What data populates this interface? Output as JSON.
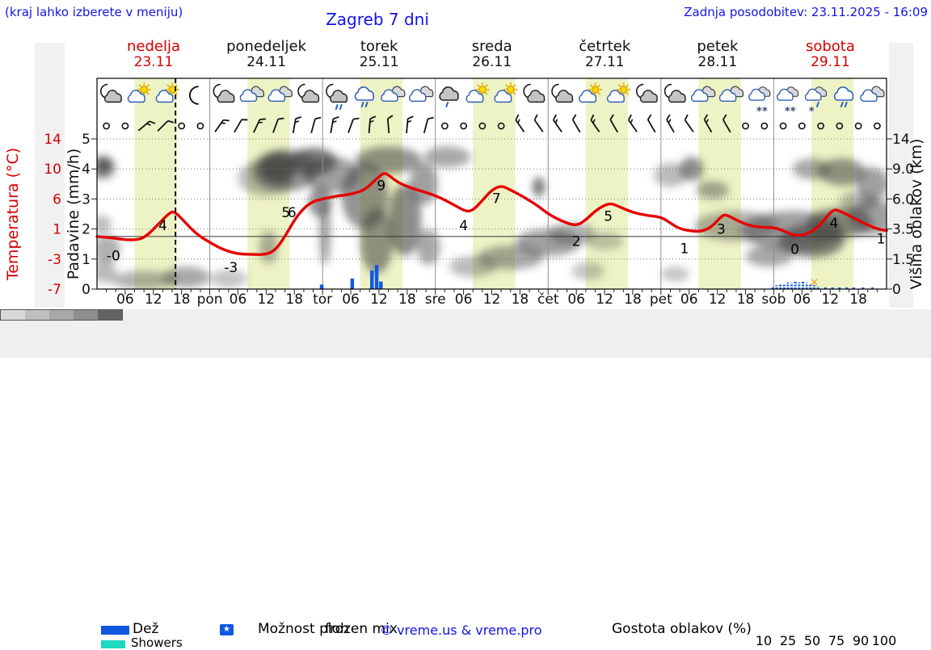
{
  "header": {
    "menu_hint": "(kraj lahko izberete v meniju)",
    "title": "Zagreb 7 dni",
    "last_update": "Zadnja posodobitev: 23.11.2025 - 16:09"
  },
  "days": [
    {
      "name": "nedelja",
      "date": "23.11",
      "highlight": true,
      "axis_short": ""
    },
    {
      "name": "ponedeljek",
      "date": "24.11",
      "highlight": false,
      "axis_short": "pon"
    },
    {
      "name": "torek",
      "date": "25.11",
      "highlight": false,
      "axis_short": "tor"
    },
    {
      "name": "sreda",
      "date": "26.11",
      "highlight": false,
      "axis_short": "sre"
    },
    {
      "name": "četrtek",
      "date": "27.11",
      "highlight": false,
      "axis_short": "čet"
    },
    {
      "name": "petek",
      "date": "28.11",
      "highlight": false,
      "axis_short": "pet"
    },
    {
      "name": "sobota",
      "date": "29.11",
      "highlight": true,
      "axis_short": "sob"
    }
  ],
  "legend": {
    "rain": "Dež",
    "showers": "Showers",
    "chance": "Možnost ploh",
    "frozen_mix": "frozen mix",
    "star": "★",
    "copyright": "© vreme.us & vreme.pro",
    "cloud_density": "Gostota oblakov (%)",
    "density_ticks": [
      "10",
      "25",
      "50",
      "75",
      "90",
      "100"
    ],
    "density_colors": [
      "#d8d8d8",
      "#bfbfbf",
      "#a8a8a8",
      "#8f8f8f",
      "#636363"
    ]
  },
  "colors": {
    "accent_blue": "#1414e6",
    "red": "#d40000",
    "temperature_line": "#e60000",
    "day_band": "#eef3c6",
    "rain": "#1257e0",
    "showers": "#1fd7c2",
    "frozen_x": "#f0a81e",
    "grid": "#777777",
    "cloud_gray": "#404040"
  },
  "chart_data": {
    "type": "line+bar+contour",
    "title": "Zagreb 7 dni",
    "x_axis": {
      "unit": "hours",
      "range": [
        0,
        168
      ],
      "hour_tick_labels": [
        "06",
        "12",
        "18"
      ],
      "now_line_hour": 16.7,
      "day_band_hours": [
        8,
        17
      ]
    },
    "y_axis_temperature": {
      "label": "Temperatura (°C)",
      "ticks": [
        "14",
        "10",
        "6",
        "1",
        "-3",
        "-7"
      ]
    },
    "y_axis_precip": {
      "label": "Padavine (mm/h)",
      "ticks": [
        "5",
        "4",
        "3",
        "2",
        "1",
        "0"
      ],
      "zero_temp_gridline_units": 1.75
    },
    "y_axis_cloud": {
      "label": "Višina oblakov (km)",
      "ticks": [
        "14",
        "9.0",
        "6.0",
        "3.5",
        "1.5",
        "0"
      ]
    },
    "temperature": {
      "points": [
        [
          0,
          1.75
        ],
        [
          3,
          1.71
        ],
        [
          7,
          1.62
        ],
        [
          10,
          1.68
        ],
        [
          13,
          2.15
        ],
        [
          15.5,
          2.55
        ],
        [
          16.5,
          2.58
        ],
        [
          18,
          2.35
        ],
        [
          21,
          1.85
        ],
        [
          24,
          1.55
        ],
        [
          27,
          1.3
        ],
        [
          30,
          1.17
        ],
        [
          33,
          1.15
        ],
        [
          36,
          1.15
        ],
        [
          38,
          1.3
        ],
        [
          40,
          1.75
        ],
        [
          42,
          2.3
        ],
        [
          44,
          2.7
        ],
        [
          46,
          2.92
        ],
        [
          48,
          3.0
        ],
        [
          51,
          3.1
        ],
        [
          54,
          3.15
        ],
        [
          57,
          3.3
        ],
        [
          59,
          3.6
        ],
        [
          61,
          3.88
        ],
        [
          62,
          3.8
        ],
        [
          64,
          3.55
        ],
        [
          67,
          3.35
        ],
        [
          70,
          3.22
        ],
        [
          73,
          3.05
        ],
        [
          76,
          2.8
        ],
        [
          78.5,
          2.58
        ],
        [
          80,
          2.62
        ],
        [
          82,
          2.95
        ],
        [
          84,
          3.3
        ],
        [
          86,
          3.45
        ],
        [
          88,
          3.3
        ],
        [
          91,
          3.05
        ],
        [
          94,
          2.75
        ],
        [
          96,
          2.5
        ],
        [
          99,
          2.25
        ],
        [
          102,
          2.1
        ],
        [
          104,
          2.3
        ],
        [
          106,
          2.6
        ],
        [
          108,
          2.8
        ],
        [
          109.5,
          2.85
        ],
        [
          111,
          2.75
        ],
        [
          114,
          2.55
        ],
        [
          117,
          2.45
        ],
        [
          120,
          2.4
        ],
        [
          122,
          2.2
        ],
        [
          124,
          2.0
        ],
        [
          127,
          1.92
        ],
        [
          129,
          1.93
        ],
        [
          131,
          2.1
        ],
        [
          133,
          2.45
        ],
        [
          134,
          2.47
        ],
        [
          136,
          2.3
        ],
        [
          139,
          2.1
        ],
        [
          142,
          2.05
        ],
        [
          144,
          2.05
        ],
        [
          146,
          1.95
        ],
        [
          148,
          1.8
        ],
        [
          150,
          1.78
        ],
        [
          152,
          1.9
        ],
        [
          154,
          2.15
        ],
        [
          156,
          2.55
        ],
        [
          157,
          2.65
        ],
        [
          158,
          2.6
        ],
        [
          160,
          2.45
        ],
        [
          163,
          2.2
        ],
        [
          166,
          2.0
        ],
        [
          168,
          1.95
        ]
      ],
      "labels": [
        [
          3.5,
          1.12,
          "-0"
        ],
        [
          14,
          2.12,
          "4"
        ],
        [
          28.5,
          0.72,
          "-3"
        ],
        [
          40.2,
          2.56,
          "5"
        ],
        [
          41.5,
          2.56,
          "6"
        ],
        [
          60.5,
          3.45,
          "9"
        ],
        [
          78,
          2.12,
          "4"
        ],
        [
          85,
          3.02,
          "7"
        ],
        [
          102,
          1.6,
          "2"
        ],
        [
          108.8,
          2.43,
          "5"
        ],
        [
          125,
          1.36,
          "1"
        ],
        [
          132.8,
          2.0,
          "3"
        ],
        [
          148.5,
          1.33,
          "0"
        ],
        [
          156.8,
          2.2,
          "4"
        ],
        [
          166.8,
          1.68,
          "1"
        ]
      ]
    },
    "precipitation": {
      "rain_bars": [
        [
          47.8,
          0.15
        ],
        [
          54.3,
          0.35
        ],
        [
          58.5,
          0.62
        ],
        [
          59.5,
          0.8
        ],
        [
          60.4,
          0.25
        ]
      ],
      "mix_bars": [
        [
          143.8,
          0.1
        ],
        [
          144.6,
          0.13
        ],
        [
          145.4,
          0.18
        ],
        [
          146.2,
          0.15
        ],
        [
          147,
          0.22
        ],
        [
          147.8,
          0.2
        ],
        [
          148.6,
          0.26
        ],
        [
          149.4,
          0.22
        ],
        [
          150.2,
          0.28
        ],
        [
          151,
          0.2
        ],
        [
          151.8,
          0.16
        ],
        [
          152.6,
          0.13
        ],
        [
          153.4,
          0.1
        ],
        [
          155,
          0.07
        ],
        [
          156.5,
          0.07
        ],
        [
          158,
          0.07
        ],
        [
          159.5,
          0.09
        ],
        [
          161,
          0.07
        ],
        [
          163,
          0.06
        ],
        [
          165,
          0.06
        ]
      ],
      "frozen_x_marker": {
        "h": 152.6,
        "u": 0.2,
        "glyph": "✕"
      }
    },
    "cloud_blobs": [
      [
        1,
        4.05,
        3,
        0.4,
        0.5
      ],
      [
        1.5,
        4.1,
        1.5,
        0.28,
        0.75
      ],
      [
        1,
        2.15,
        2,
        0.3,
        0.35
      ],
      [
        2,
        1.35,
        3,
        0.45,
        0.4
      ],
      [
        1.5,
        0.6,
        2.5,
        0.4,
        0.35
      ],
      [
        10,
        0.3,
        7,
        0.3,
        0.4
      ],
      [
        19,
        0.4,
        5,
        0.35,
        0.45
      ],
      [
        28,
        0.35,
        4,
        0.3,
        0.3
      ],
      [
        36.5,
        1.4,
        2,
        0.55,
        0.4
      ],
      [
        36,
        3.7,
        6,
        0.6,
        0.35
      ],
      [
        40,
        3.95,
        7,
        0.7,
        0.55
      ],
      [
        38.5,
        4.05,
        4,
        0.5,
        0.75
      ],
      [
        46,
        4.25,
        5,
        0.45,
        0.7
      ],
      [
        50,
        3.8,
        6,
        0.6,
        0.5
      ],
      [
        47.5,
        2.9,
        2.5,
        0.5,
        0.55
      ],
      [
        48.5,
        1.9,
        1.2,
        1.1,
        0.5
      ],
      [
        57,
        3.1,
        5,
        1.1,
        0.55
      ],
      [
        59.5,
        1.6,
        3.5,
        1.1,
        0.55
      ],
      [
        62,
        4.3,
        7,
        0.45,
        0.55
      ],
      [
        65.5,
        2.3,
        3.5,
        1.2,
        0.6
      ],
      [
        69.5,
        3.5,
        3,
        0.7,
        0.5
      ],
      [
        70.5,
        1.4,
        2.5,
        0.6,
        0.45
      ],
      [
        74.5,
        4.4,
        5,
        0.35,
        0.45
      ],
      [
        80,
        0.75,
        5,
        0.35,
        0.35
      ],
      [
        88,
        1.05,
        7,
        0.4,
        0.45
      ],
      [
        96,
        1.55,
        7,
        0.45,
        0.5
      ],
      [
        101,
        1.85,
        5,
        0.35,
        0.4
      ],
      [
        94,
        3.4,
        1.3,
        0.33,
        0.7
      ],
      [
        104.5,
        0.6,
        3.5,
        0.3,
        0.3
      ],
      [
        108,
        1.6,
        4,
        0.3,
        0.3
      ],
      [
        122,
        3.8,
        3.5,
        0.4,
        0.35
      ],
      [
        126.5,
        4.0,
        2.5,
        0.4,
        0.6
      ],
      [
        131,
        3.3,
        3.5,
        0.3,
        0.45
      ],
      [
        123,
        0.5,
        3,
        0.25,
        0.3
      ],
      [
        136,
        2.1,
        9,
        0.5,
        0.4
      ],
      [
        143,
        1.1,
        5,
        0.35,
        0.45
      ],
      [
        148,
        1.95,
        11,
        0.65,
        0.5
      ],
      [
        152,
        1.6,
        7,
        0.55,
        0.65
      ],
      [
        158,
        2.2,
        7,
        0.5,
        0.6
      ],
      [
        165,
        2.4,
        5,
        0.6,
        0.5
      ],
      [
        152,
        4.0,
        4,
        0.35,
        0.45
      ],
      [
        158.5,
        3.9,
        5,
        0.45,
        0.55
      ],
      [
        165,
        3.5,
        3.5,
        0.55,
        0.5
      ],
      [
        162,
        2.9,
        4,
        0.35,
        0.35
      ]
    ],
    "wind": [
      "c",
      "c",
      "b50",
      "b45",
      "c",
      "c",
      "b35",
      "b30",
      "b25",
      "b20",
      "b10",
      "b15",
      "b10",
      "b20",
      "b5",
      "b-5",
      "b5",
      "b15",
      "c",
      "c",
      "c",
      "c",
      "b-35",
      "b-35",
      "b-35",
      "b-30",
      "b-35",
      "b-30",
      "b-35",
      "b-30",
      "b-30",
      "b-35",
      "b-30",
      "b-30",
      "c",
      "c",
      "c",
      "c",
      "c",
      "c",
      "c",
      "c"
    ],
    "weather_icons": [
      "moon-cloud",
      "sun-cloud",
      "sun-cloud",
      "moon",
      "moon-cloud",
      "clouds",
      "clouds",
      "moon-cloud",
      "moon-cloud-rain",
      "cloud-rain",
      "clouds",
      "clouds",
      "cloud-drizzle",
      "sun-cloud",
      "sun-cloud",
      "moon-cloud",
      "moon-cloud",
      "sun-cloud",
      "sun-cloud",
      "moon-cloud",
      "moon-cloud",
      "clouds",
      "clouds",
      "cloud-snow",
      "cloud-snow",
      "cloud-sleet",
      "cloud-rain",
      "clouds"
    ]
  }
}
